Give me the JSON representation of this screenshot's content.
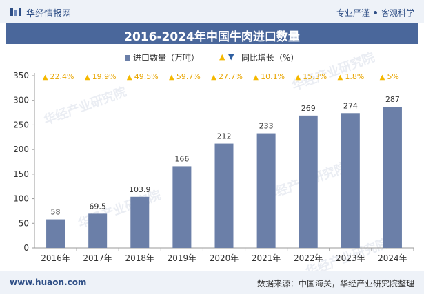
{
  "header": {
    "brand": "华经情报网",
    "slogan_left": "专业严谨",
    "slogan_right": "客观科学"
  },
  "chart_data": {
    "type": "bar",
    "title": "2016-2024年中国牛肉进口数量",
    "categories": [
      "2016年",
      "2017年",
      "2018年",
      "2019年",
      "2020年",
      "2021年",
      "2022年",
      "2023年",
      "2024年"
    ],
    "series": [
      {
        "name": "进口数量（万吨）",
        "values": [
          58,
          69.5,
          103.9,
          166,
          212,
          233,
          269,
          274,
          287
        ],
        "labels": [
          "58",
          "69.5",
          "103.9",
          "166",
          "212",
          "233",
          "269",
          "274",
          "287"
        ],
        "color": "#6b7fa8"
      },
      {
        "name": "同比增长（%）",
        "values": [
          22.4,
          19.9,
          49.5,
          59.7,
          27.7,
          10.1,
          15.3,
          1.8,
          5
        ],
        "labels": [
          "22.4%",
          "19.9%",
          "49.5%",
          "59.7%",
          "27.7%",
          "10.1%",
          "15.3%",
          "1.8%",
          "5%"
        ],
        "color": "#f5b800"
      }
    ],
    "ylim": [
      0,
      350
    ],
    "yticks": [
      "0",
      "50",
      "100",
      "150",
      "200",
      "250",
      "300",
      "350"
    ],
    "ytick_values": [
      0,
      50,
      100,
      150,
      200,
      250,
      300,
      350
    ],
    "legend_position": "top-center",
    "grid": false
  },
  "footer": {
    "website": "www.huaon.com",
    "source": "数据来源：中国海关，华经产业研究院整理"
  },
  "watermark_text": "华经产业研究院",
  "colors": {
    "title_bg": "#4a679b",
    "bar": "#6b7fa8",
    "yoy": "#f5b800",
    "brand": "#2f4f86"
  }
}
